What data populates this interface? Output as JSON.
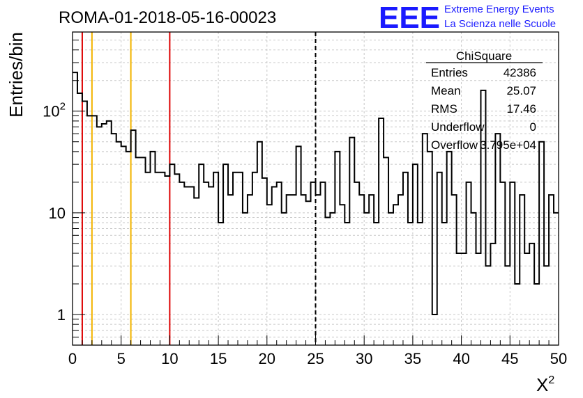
{
  "logo": {
    "mark": "EEE",
    "line1": "Extreme Energy Events",
    "line2": "La Scienza nelle Scuole",
    "color": "#1a1aff"
  },
  "chart_data": {
    "type": "histogram",
    "title": "ROMA-01-2018-05-16-00023",
    "xlabel": "X",
    "xlabel_superscript": "2",
    "ylabel": "Entries/bin",
    "xlim": [
      0,
      50
    ],
    "ylim": [
      0.5,
      600
    ],
    "yscale": "log",
    "grid": true,
    "x_ticks": [
      0,
      5,
      10,
      15,
      20,
      25,
      30,
      35,
      40,
      45,
      50
    ],
    "y_ticks": [
      {
        "value": 1,
        "label": "1"
      },
      {
        "value": 10,
        "label": "10"
      },
      {
        "value": 100,
        "label": "10",
        "exponent": "2"
      }
    ],
    "bin_width": 0.5,
    "values": [
      240,
      150,
      125,
      90,
      90,
      70,
      75,
      80,
      60,
      50,
      45,
      40,
      65,
      35,
      35,
      25,
      40,
      25,
      25,
      23,
      30,
      24,
      20,
      18,
      18,
      14,
      30,
      20,
      18,
      25,
      8,
      30,
      15,
      25,
      25,
      10,
      15,
      25,
      50,
      22,
      12,
      18,
      20,
      10,
      15,
      15,
      45,
      15,
      13,
      20,
      15,
      20,
      9,
      10,
      40,
      12,
      8,
      55,
      20,
      15,
      10,
      15,
      8,
      85,
      35,
      10,
      12,
      15,
      25,
      8,
      30,
      8,
      60,
      40,
      1,
      25,
      8,
      40,
      15,
      4,
      4,
      20,
      10,
      4,
      160,
      3,
      5,
      60,
      20,
      3,
      20,
      2,
      15,
      4,
      5,
      2,
      50,
      3,
      15,
      10
    ],
    "markers": [
      {
        "x": 1,
        "color": "#dd0000",
        "style": "solid"
      },
      {
        "x": 2,
        "color": "#f2b400",
        "style": "solid"
      },
      {
        "x": 6,
        "color": "#f2b400",
        "style": "solid"
      },
      {
        "x": 10,
        "color": "#dd0000",
        "style": "solid"
      },
      {
        "x": 25,
        "color": "#000000",
        "style": "dashed"
      }
    ],
    "stats_box": {
      "title": "ChiSquare",
      "rows": [
        {
          "label": "Entries",
          "value": "42386"
        },
        {
          "label": "Mean",
          "value": "25.07"
        },
        {
          "label": "RMS",
          "value": "17.46"
        },
        {
          "label": "Underflow",
          "value": "0"
        },
        {
          "label": "Overflow",
          "value": "3.795e+04"
        }
      ]
    }
  }
}
